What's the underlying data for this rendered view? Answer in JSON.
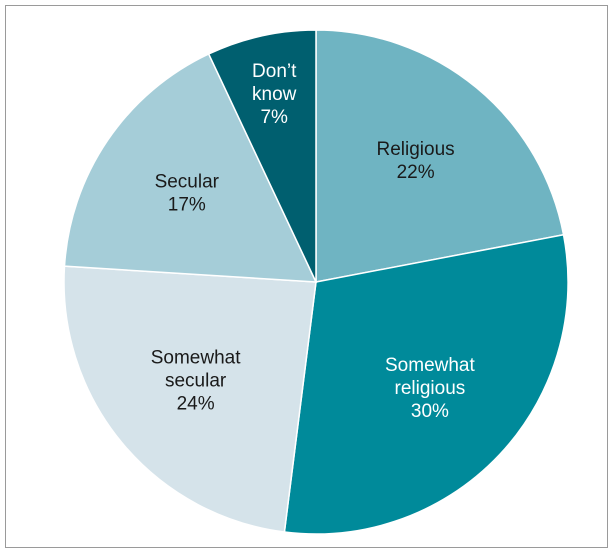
{
  "chart_data": {
    "type": "pie",
    "slices": [
      {
        "label_lines": [
          "Religious"
        ],
        "value": 22,
        "value_label": "22%",
        "color": "#6fb4c2",
        "text_color": "#1a1a1a"
      },
      {
        "label_lines": [
          "Somewhat",
          "religious"
        ],
        "value": 30,
        "value_label": "30%",
        "color": "#008a9a",
        "text_color": "#ffffff"
      },
      {
        "label_lines": [
          "Somewhat",
          "secular"
        ],
        "value": 24,
        "value_label": "24%",
        "color": "#d5e3ea",
        "text_color": "#1a1a1a"
      },
      {
        "label_lines": [
          "Secular"
        ],
        "value": 17,
        "value_label": "17%",
        "color": "#a5cdd8",
        "text_color": "#1a1a1a"
      },
      {
        "label_lines": [
          "Don’t",
          "know"
        ],
        "value": 7,
        "value_label": "7%",
        "color": "#005f6f",
        "text_color": "#ffffff"
      }
    ],
    "start": "12 o'clock",
    "direction": "clockwise",
    "legend": "none"
  }
}
